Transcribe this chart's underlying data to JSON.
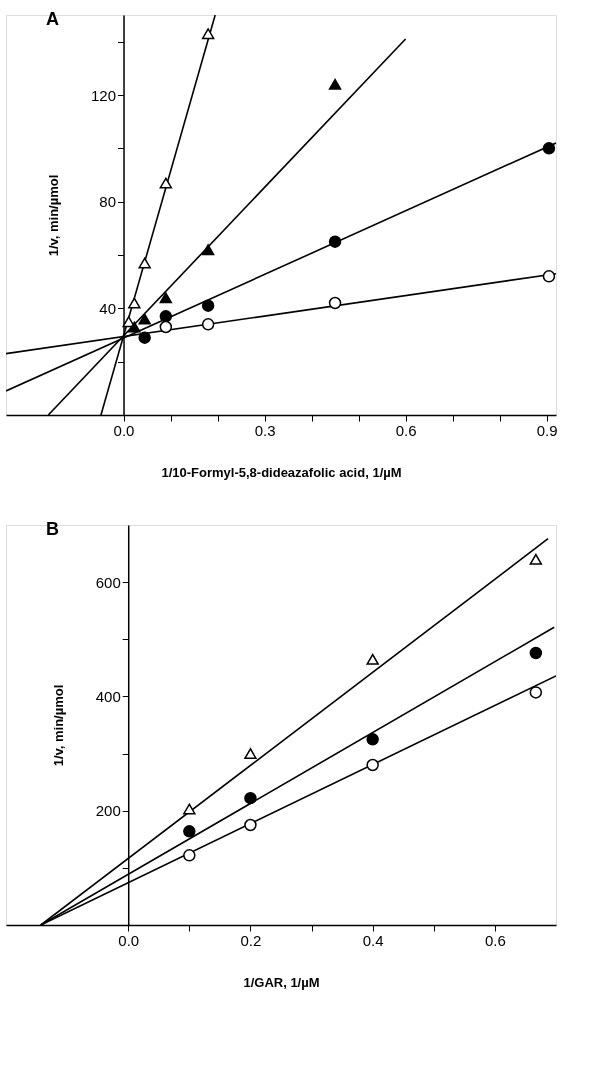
{
  "chart_data": [
    {
      "type": "scatter",
      "title": "A",
      "xlabel": "1/10-Formyl-5,8-dideazafolic   acid,      1/µM",
      "ylabel": "1/v,      min/µmol",
      "xlim": [
        -0.25,
        0.92
      ],
      "ylim": [
        0,
        150
      ],
      "xticks": [
        {
          "value": 0,
          "label": "0.0"
        },
        {
          "value": 0.1,
          "label": null
        },
        {
          "value": 0.2,
          "label": null
        },
        0.3,
        {
          "value": 0.4,
          "label": null
        },
        {
          "value": 0.5,
          "label": null
        },
        0.6,
        {
          "value": 0.7,
          "label": null
        },
        {
          "value": 0.8,
          "label": null
        },
        0.9
      ],
      "yticks": [
        {
          "value": 20,
          "label": null
        },
        40,
        {
          "value": 60,
          "label": null
        },
        80,
        {
          "value": 100,
          "label": null
        },
        120,
        {
          "value": 140,
          "label": null
        }
      ],
      "grid": false,
      "line_style": "solid",
      "series": [
        {
          "color": "#ffffff",
          "marker": "triangle",
          "x": [
            0.011,
            0.023,
            0.045,
            0.09,
            0.18
          ],
          "values": [
            35,
            42,
            57,
            87,
            143
          ]
        },
        {
          "color": "#000000",
          "marker": "triangle",
          "x": [
            0.023,
            0.045,
            0.09,
            0.18,
            0.45
          ],
          "values": [
            33,
            36,
            44,
            62,
            124
          ]
        },
        {
          "color": "#000000",
          "marker": "circle",
          "x": [
            0.045,
            0.09,
            0.18,
            0.45,
            0.905
          ],
          "values": [
            29,
            37,
            41,
            65,
            100
          ]
        },
        {
          "color": "#ffffff",
          "marker": "circle",
          "x": [
            0.09,
            0.18,
            0.45,
            0.905
          ],
          "values": [
            33,
            34,
            42,
            52
          ]
        },
        {
          "type": "line",
          "color": "#000000",
          "marker": "none",
          "x": [
            -0.048,
            0.195
          ],
          "values": [
            0,
            150
          ]
        },
        {
          "type": "line",
          "color": "#000000",
          "marker": "none",
          "x": [
            -0.16,
            0.6
          ],
          "values": [
            0,
            141
          ]
        },
        {
          "type": "line",
          "color": "#000000",
          "marker": "none",
          "x": [
            -0.25,
            0.92
          ],
          "values": [
            9,
            102
          ]
        },
        {
          "type": "line",
          "color": "#000000",
          "marker": "none",
          "x": [
            -0.25,
            0.92
          ],
          "values": [
            23,
            53
          ]
        }
      ]
    },
    {
      "type": "scatter",
      "title": "B",
      "xlabel": "1/GAR,     1/µM",
      "ylabel": "1/v,      min/µmol",
      "xlim": [
        -0.2,
        0.7
      ],
      "ylim": [
        0,
        700
      ],
      "xticks": [
        {
          "value": 0,
          "label": "0.0"
        },
        {
          "value": 0.1,
          "label": null
        },
        0.2,
        {
          "value": 0.3,
          "label": null
        },
        0.4,
        {
          "value": 0.5,
          "label": null
        },
        0.6
      ],
      "yticks": [
        {
          "value": 100,
          "label": null
        },
        200,
        {
          "value": 300,
          "label": null
        },
        400,
        {
          "value": 500,
          "label": null
        },
        600
      ],
      "grid": false,
      "line_style": "solid",
      "series": [
        {
          "color": "#ffffff",
          "marker": "triangle",
          "x": [
            0.1,
            0.2,
            0.4,
            0.667
          ],
          "values": [
            203,
            300,
            465,
            640
          ]
        },
        {
          "color": "#000000",
          "marker": "circle",
          "x": [
            0.1,
            0.2,
            0.4,
            0.667
          ],
          "values": [
            164,
            222,
            325,
            476
          ]
        },
        {
          "color": "#ffffff",
          "marker": "circle",
          "x": [
            0.1,
            0.2,
            0.4,
            0.667
          ],
          "values": [
            122,
            175,
            280,
            407
          ]
        },
        {
          "type": "line",
          "color": "#000000",
          "marker": "none",
          "x": [
            -0.143,
            0.687
          ],
          "values": [
            0,
            676
          ]
        },
        {
          "type": "line",
          "color": "#000000",
          "marker": "none",
          "x": [
            -0.143,
            0.697
          ],
          "values": [
            0,
            521
          ]
        },
        {
          "type": "line",
          "color": "#000000",
          "marker": "none",
          "x": [
            -0.143,
            0.7
          ],
          "values": [
            0,
            436
          ]
        }
      ]
    }
  ]
}
